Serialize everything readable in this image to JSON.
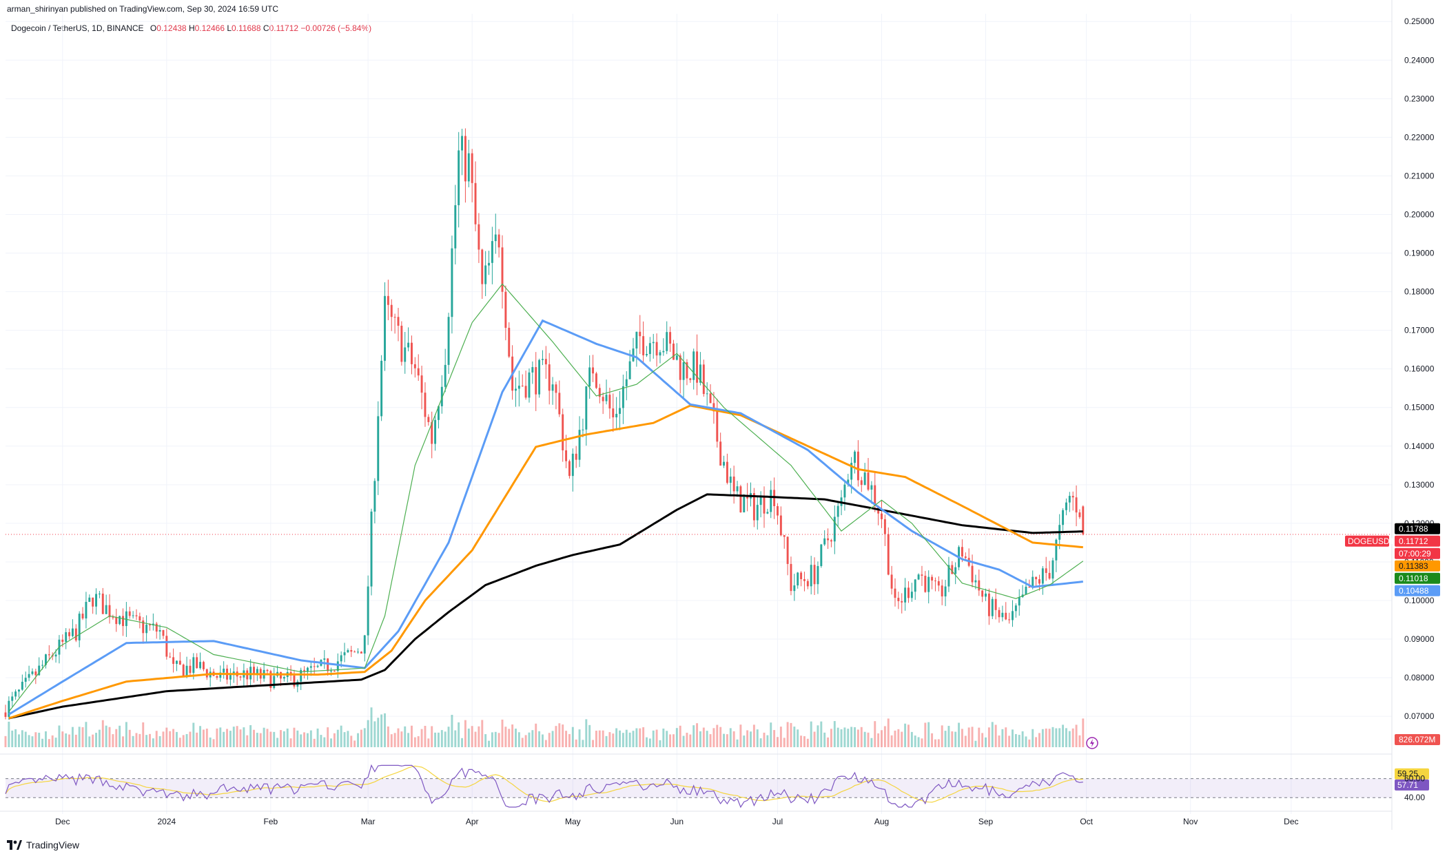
{
  "header": {
    "published": "arman_shirinyan published on TradingView.com, Sep 30, 2024 16:59 UTC"
  },
  "legend": {
    "symbol": "Dogecoin / TetherUS, 1D, BINANCE",
    "o_label": "O",
    "o_value": "0.12438",
    "h_label": "H",
    "h_value": "0.12466",
    "l_label": "L",
    "l_value": "0.11688",
    "c_label": "C",
    "c_value": "0.11712",
    "change": "−0.00726 (−5.84%)"
  },
  "branding": {
    "name": "TradingView"
  },
  "colors": {
    "up": "#26a69a",
    "down": "#ef5350",
    "ma_black": "#000000",
    "ma_orange": "#ff9800",
    "ma_blue": "#5b9cf6",
    "ma_green": "#4caf50",
    "rsi": "#7e57c2",
    "rsi_ma": "#f5d53f"
  },
  "chart_data": {
    "type": "candlestick",
    "y_axis": {
      "min": 0.062,
      "max": 0.252,
      "ticks": [
        "0.25000",
        "0.24000",
        "0.23000",
        "0.22000",
        "0.21000",
        "0.20000",
        "0.19000",
        "0.18000",
        "0.17000",
        "0.16000",
        "0.15000",
        "0.14000",
        "0.13000",
        "0.12000",
        "0.11000",
        "0.10000",
        "0.09000",
        "0.08000",
        "0.07000"
      ]
    },
    "x_axis": {
      "labels": [
        "Dec",
        "2024",
        "Feb",
        "Mar",
        "Apr",
        "May",
        "Jun",
        "Jul",
        "Aug",
        "Sep",
        "Oct",
        "Nov",
        "Dec"
      ],
      "start": "2023-11-14",
      "end": "2024-12-31"
    },
    "series": [
      {
        "name": "DOGEUSDT",
        "type": "candlestick"
      },
      {
        "name": "",
        "color": "#000000",
        "points": [
          [
            "2023-11-15",
            0.0695
          ],
          [
            "2023-12-01",
            0.0725
          ],
          [
            "2024-01-01",
            0.0765
          ],
          [
            "2024-01-20",
            0.0775
          ],
          [
            "2024-02-28",
            0.0795
          ],
          [
            "2024-03-06",
            0.082
          ],
          [
            "2024-03-15",
            0.09
          ],
          [
            "2024-03-25",
            0.097
          ],
          [
            "2024-04-05",
            0.104
          ],
          [
            "2024-04-20",
            0.109
          ],
          [
            "2024-05-01",
            0.1118
          ],
          [
            "2024-05-15",
            0.1145
          ],
          [
            "2024-06-01",
            0.1235
          ],
          [
            "2024-06-10",
            0.1275
          ],
          [
            "2024-06-25",
            0.127
          ],
          [
            "2024-07-15",
            0.1262
          ],
          [
            "2024-08-05",
            0.1228
          ],
          [
            "2024-08-25",
            0.1195
          ],
          [
            "2024-09-15",
            0.1175
          ],
          [
            "2024-09-30",
            0.1179
          ]
        ]
      },
      {
        "name": "",
        "color": "#ff9800",
        "points": [
          [
            "2023-11-15",
            0.0695
          ],
          [
            "2023-12-01",
            0.074
          ],
          [
            "2023-12-20",
            0.079
          ],
          [
            "2024-01-15",
            0.081
          ],
          [
            "2024-02-15",
            0.0808
          ],
          [
            "2024-02-29",
            0.0815
          ],
          [
            "2024-03-08",
            0.087
          ],
          [
            "2024-03-18",
            0.1
          ],
          [
            "2024-04-01",
            0.113
          ],
          [
            "2024-04-20",
            0.1398
          ],
          [
            "2024-05-05",
            0.143
          ],
          [
            "2024-05-25",
            0.146
          ],
          [
            "2024-06-05",
            0.1505
          ],
          [
            "2024-06-20",
            0.148
          ],
          [
            "2024-07-10",
            0.14
          ],
          [
            "2024-07-25",
            0.134
          ],
          [
            "2024-08-08",
            0.132
          ],
          [
            "2024-08-25",
            0.1245
          ],
          [
            "2024-09-15",
            0.115
          ],
          [
            "2024-09-30",
            0.1138
          ]
        ]
      },
      {
        "name": "",
        "color": "#5b9cf6",
        "points": [
          [
            "2023-11-15",
            0.0705
          ],
          [
            "2023-12-01",
            0.079
          ],
          [
            "2023-12-20",
            0.089
          ],
          [
            "2024-01-15",
            0.0895
          ],
          [
            "2024-02-10",
            0.0845
          ],
          [
            "2024-02-29",
            0.0825
          ],
          [
            "2024-03-10",
            0.092
          ],
          [
            "2024-03-25",
            0.115
          ],
          [
            "2024-04-10",
            0.154
          ],
          [
            "2024-04-22",
            0.1725
          ],
          [
            "2024-05-08",
            0.1665
          ],
          [
            "2024-05-20",
            0.163
          ],
          [
            "2024-06-05",
            0.1508
          ],
          [
            "2024-06-20",
            0.1485
          ],
          [
            "2024-07-10",
            0.139
          ],
          [
            "2024-07-25",
            0.128
          ],
          [
            "2024-08-10",
            0.118
          ],
          [
            "2024-08-25",
            0.1107
          ],
          [
            "2024-09-05",
            0.108
          ],
          [
            "2024-09-15",
            0.1035
          ],
          [
            "2024-09-30",
            0.1049
          ]
        ]
      },
      {
        "name": "",
        "color": "#4caf50",
        "points": [
          [
            "2023-11-15",
            0.0712
          ],
          [
            "2023-11-30",
            0.088
          ],
          [
            "2023-12-15",
            0.096
          ],
          [
            "2024-01-01",
            0.093
          ],
          [
            "2024-01-15",
            0.086
          ],
          [
            "2024-02-10",
            0.0815
          ],
          [
            "2024-02-29",
            0.0825
          ],
          [
            "2024-03-06",
            0.096
          ],
          [
            "2024-03-15",
            0.135
          ],
          [
            "2024-04-01",
            0.172
          ],
          [
            "2024-04-10",
            0.182
          ],
          [
            "2024-04-25",
            0.167
          ],
          [
            "2024-05-08",
            0.153
          ],
          [
            "2024-05-20",
            0.156
          ],
          [
            "2024-06-01",
            0.164
          ],
          [
            "2024-06-15",
            0.15
          ],
          [
            "2024-07-05",
            0.135
          ],
          [
            "2024-07-20",
            0.118
          ],
          [
            "2024-08-01",
            0.126
          ],
          [
            "2024-08-10",
            0.12
          ],
          [
            "2024-08-25",
            0.1045
          ],
          [
            "2024-09-10",
            0.1005
          ],
          [
            "2024-09-20",
            0.104
          ],
          [
            "2024-09-30",
            0.1102
          ]
        ]
      }
    ],
    "price_badges": [
      {
        "label": "0.11788",
        "value": 0.11788,
        "bg": "#000000",
        "fg": "#ffffff"
      },
      {
        "label": "0.11712",
        "value": 0.11712,
        "bg": "#f23645",
        "fg": "#ffffff"
      },
      {
        "label": "07:00:29",
        "value": 0.11552,
        "bg": "#f23645",
        "fg": "#ffffff"
      },
      {
        "label": "0.11383",
        "value": 0.11383,
        "bg": "#ff9800",
        "fg": "#131722"
      },
      {
        "label": "0.11018",
        "value": 0.11018,
        "bg": "#1b8a1b",
        "fg": "#ffffff"
      },
      {
        "label": "0.10488",
        "value": 0.10488,
        "bg": "#5b9cf6",
        "fg": "#ffffff"
      }
    ],
    "symbol_tag": "DOGEUSDT",
    "volume_badge": "826.072M",
    "rsi": {
      "levels": [
        "60.00",
        "40.00"
      ],
      "values": [
        {
          "label": "59.25",
          "bg": "#f5d53f",
          "fg": "#131722"
        },
        {
          "label": "57.71",
          "bg": "#7e57c2",
          "fg": "#ffffff"
        }
      ]
    }
  }
}
